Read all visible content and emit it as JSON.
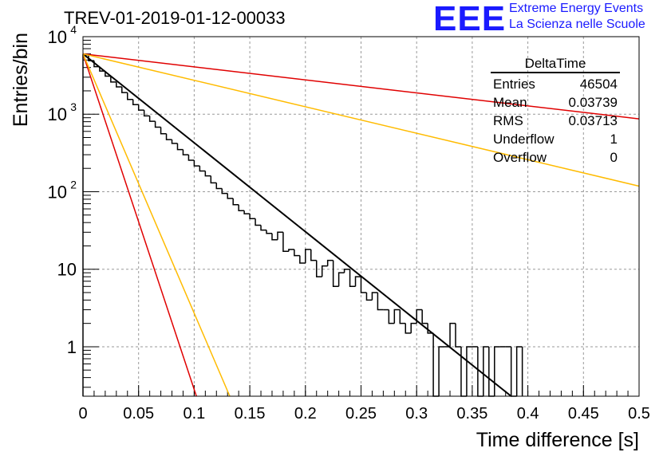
{
  "header": {
    "title": "TREV-01-2019-01-12-00033",
    "logo_text": "EEE",
    "logo_line1": "Extreme Energy Events",
    "logo_line2": "La Scienza nelle Scuole"
  },
  "stats": {
    "title": "DeltaTime",
    "rows": [
      {
        "label": "Entries",
        "value": "46504"
      },
      {
        "label": "Mean",
        "value": "0.03739"
      },
      {
        "label": "RMS",
        "value": "0.03713"
      },
      {
        "label": "Underflow",
        "value": "1"
      },
      {
        "label": "Overflow",
        "value": "0"
      }
    ]
  },
  "chart_data": {
    "type": "line",
    "title": "TREV-01-2019-01-12-00033",
    "xlabel": "Time difference [s]",
    "ylabel": "Entries/bin",
    "xlim": [
      0,
      0.5
    ],
    "ylim": [
      0.23,
      10000
    ],
    "yscale": "log",
    "grid": true,
    "x_ticks": [
      "0",
      "0.05",
      "0.1",
      "0.15",
      "0.2",
      "0.25",
      "0.3",
      "0.35",
      "0.4",
      "0.45",
      "0.5"
    ],
    "y_ticks": [
      {
        "value": 1,
        "label": "1",
        "sup": ""
      },
      {
        "value": 10,
        "label": "10",
        "sup": ""
      },
      {
        "value": 100,
        "label": "10",
        "sup": "2"
      },
      {
        "value": 1000,
        "label": "10",
        "sup": "3"
      },
      {
        "value": 10000,
        "label": "10",
        "sup": "4"
      }
    ],
    "histogram": {
      "name": "DeltaTime",
      "bin_width": 0.005,
      "color": "#000000",
      "bins": [
        {
          "x": 0.0,
          "y": 5800
        },
        {
          "x": 0.005,
          "y": 4900
        },
        {
          "x": 0.01,
          "y": 4100
        },
        {
          "x": 0.015,
          "y": 3600
        },
        {
          "x": 0.02,
          "y": 3100
        },
        {
          "x": 0.025,
          "y": 2600
        },
        {
          "x": 0.03,
          "y": 2250
        },
        {
          "x": 0.035,
          "y": 1900
        },
        {
          "x": 0.04,
          "y": 1550
        },
        {
          "x": 0.045,
          "y": 1330
        },
        {
          "x": 0.05,
          "y": 1130
        },
        {
          "x": 0.055,
          "y": 950
        },
        {
          "x": 0.06,
          "y": 810
        },
        {
          "x": 0.065,
          "y": 680
        },
        {
          "x": 0.07,
          "y": 560
        },
        {
          "x": 0.075,
          "y": 470
        },
        {
          "x": 0.08,
          "y": 420
        },
        {
          "x": 0.085,
          "y": 350
        },
        {
          "x": 0.09,
          "y": 300
        },
        {
          "x": 0.095,
          "y": 255
        },
        {
          "x": 0.1,
          "y": 215
        },
        {
          "x": 0.105,
          "y": 185
        },
        {
          "x": 0.11,
          "y": 160
        },
        {
          "x": 0.115,
          "y": 130
        },
        {
          "x": 0.12,
          "y": 110
        },
        {
          "x": 0.125,
          "y": 95
        },
        {
          "x": 0.13,
          "y": 82
        },
        {
          "x": 0.135,
          "y": 68
        },
        {
          "x": 0.14,
          "y": 57
        },
        {
          "x": 0.145,
          "y": 52
        },
        {
          "x": 0.15,
          "y": 45
        },
        {
          "x": 0.155,
          "y": 37
        },
        {
          "x": 0.16,
          "y": 32
        },
        {
          "x": 0.165,
          "y": 29
        },
        {
          "x": 0.17,
          "y": 24
        },
        {
          "x": 0.175,
          "y": 30
        },
        {
          "x": 0.18,
          "y": 17
        },
        {
          "x": 0.185,
          "y": 18
        },
        {
          "x": 0.19,
          "y": 15
        },
        {
          "x": 0.195,
          "y": 12
        },
        {
          "x": 0.2,
          "y": 18
        },
        {
          "x": 0.205,
          "y": 13
        },
        {
          "x": 0.21,
          "y": 8
        },
        {
          "x": 0.215,
          "y": 11
        },
        {
          "x": 0.22,
          "y": 13
        },
        {
          "x": 0.225,
          "y": 6
        },
        {
          "x": 0.23,
          "y": 9
        },
        {
          "x": 0.235,
          "y": 10
        },
        {
          "x": 0.24,
          "y": 6
        },
        {
          "x": 0.245,
          "y": 8
        },
        {
          "x": 0.25,
          "y": 5
        },
        {
          "x": 0.255,
          "y": 4
        },
        {
          "x": 0.26,
          "y": 5
        },
        {
          "x": 0.265,
          "y": 3
        },
        {
          "x": 0.27,
          "y": 3
        },
        {
          "x": 0.275,
          "y": 2
        },
        {
          "x": 0.28,
          "y": 3
        },
        {
          "x": 0.285,
          "y": 2
        },
        {
          "x": 0.29,
          "y": 1.5
        },
        {
          "x": 0.295,
          "y": 2
        },
        {
          "x": 0.3,
          "y": 3
        },
        {
          "x": 0.305,
          "y": 2
        },
        {
          "x": 0.31,
          "y": 1.5
        },
        {
          "x": 0.315,
          "y": 0
        },
        {
          "x": 0.32,
          "y": 1
        },
        {
          "x": 0.325,
          "y": 1
        },
        {
          "x": 0.33,
          "y": 2
        },
        {
          "x": 0.335,
          "y": 1
        },
        {
          "x": 0.34,
          "y": 0
        },
        {
          "x": 0.345,
          "y": 1
        },
        {
          "x": 0.35,
          "y": 1
        },
        {
          "x": 0.355,
          "y": 0
        },
        {
          "x": 0.36,
          "y": 1
        },
        {
          "x": 0.365,
          "y": 0
        },
        {
          "x": 0.37,
          "y": 1
        },
        {
          "x": 0.375,
          "y": 1
        },
        {
          "x": 0.38,
          "y": 1
        },
        {
          "x": 0.385,
          "y": 0
        },
        {
          "x": 0.39,
          "y": 1
        }
      ]
    },
    "lines": [
      {
        "name": "fit",
        "color": "#000000",
        "width": 2,
        "x": [
          0,
          0.385
        ],
        "y": [
          6000,
          0.23
        ]
      },
      {
        "name": "red-upper",
        "color": "#e00000",
        "width": 1.5,
        "x": [
          0,
          0.5
        ],
        "y": [
          6000,
          870
        ]
      },
      {
        "name": "yellow-upper",
        "color": "#ffbb00",
        "width": 1.5,
        "x": [
          0,
          0.5
        ],
        "y": [
          6000,
          118
        ]
      },
      {
        "name": "red-lower",
        "color": "#e00000",
        "width": 1.5,
        "x": [
          0,
          0.102
        ],
        "y": [
          6000,
          0.23
        ]
      },
      {
        "name": "yellow-lower",
        "color": "#ffbb00",
        "width": 1.5,
        "x": [
          0,
          0.132
        ],
        "y": [
          6000,
          0.23
        ]
      }
    ]
  }
}
